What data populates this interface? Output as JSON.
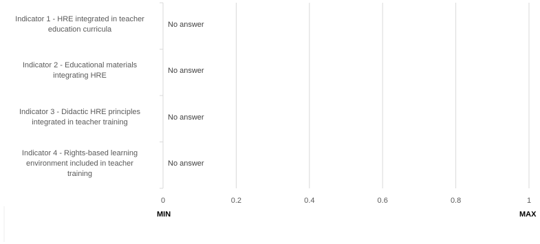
{
  "chart_data": {
    "type": "bar",
    "orientation": "horizontal",
    "categories": [
      "Indicator 1 - HRE integrated in teacher education curricula",
      "Indicator 2 - Educational materials integrating HRE",
      "Indicator 3 - Didactic HRE principles integrated in teacher training",
      "Indicator 4 - Rights-based learning environment included in teacher training"
    ],
    "category_lines": [
      [
        "Indicator 1 - HRE integrated in teacher",
        "education curricula"
      ],
      [
        "Indicator 2 - Educational materials",
        "integrating HRE"
      ],
      [
        "Indicator 3 - Didactic HRE principles",
        "integrated in teacher training"
      ],
      [
        "Indicator 4 - Rights-based learning",
        "environment included in teacher",
        "training"
      ]
    ],
    "values": [
      0,
      0,
      0,
      0
    ],
    "data_labels": [
      "No answer",
      "No answer",
      "No answer",
      "No answer"
    ],
    "xlim": [
      0,
      1
    ],
    "x_ticks": [
      0,
      0.2,
      0.4,
      0.6,
      0.8,
      1
    ],
    "x_tick_labels": [
      "0",
      "0.2",
      "0.4",
      "0.6",
      "0.8",
      "1"
    ],
    "min_label": "MIN",
    "max_label": "MAX",
    "grid": true,
    "colors": {
      "grid": "#d9d9d9",
      "text": "#595959",
      "minmax": "#000000"
    }
  }
}
